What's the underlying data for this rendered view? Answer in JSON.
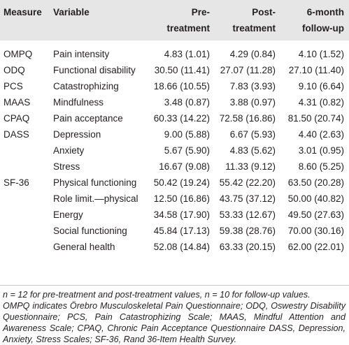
{
  "headers": {
    "measure": "Measure",
    "variable": "Variable",
    "pre_line1": "Pre-",
    "pre_line2": "treatment",
    "post_line1": "Post-",
    "post_line2": "treatment",
    "follow_line1": "6-month",
    "follow_line2": "follow-up"
  },
  "rows": [
    {
      "measure": "OMPQ",
      "variable": "Pain intensity",
      "pre": "4.83 (1.01)",
      "post": "4.29 (0.84)",
      "follow": "4.10 (1.52)"
    },
    {
      "measure": "ODQ",
      "variable": "Functional disability",
      "pre": "30.50 (11.41)",
      "post": "27.07 (11.28)",
      "follow": "27.10 (11.40)"
    },
    {
      "measure": "PCS",
      "variable": "Catastrophizing",
      "pre": "18.66 (10.55)",
      "post": "7.83 (3.93)",
      "follow": "9.10 (6.64)"
    },
    {
      "measure": "MAAS",
      "variable": "Mindfulness",
      "pre": "3.48 (0.87)",
      "post": "3.88 (0.97)",
      "follow": "4.31 (0.82)"
    },
    {
      "measure": "CPAQ",
      "variable": "Pain acceptance",
      "pre": "60.33 (14.22)",
      "post": "72.58 (16.86)",
      "follow": "81.50 (20.74)"
    },
    {
      "measure": "DASS",
      "variable": "Depression",
      "pre": "9.00 (5.88)",
      "post": "6.67 (5.93)",
      "follow": "4.40 (2.63)"
    },
    {
      "measure": "",
      "variable": "Anxiety",
      "pre": "5.67 (5.90)",
      "post": "4.83 (5.62)",
      "follow": "3.01 (0.95)"
    },
    {
      "measure": "",
      "variable": "Stress",
      "pre": "16.67 (9.08)",
      "post": "11.33 (9.12)",
      "follow": "8.60 (5.25)"
    },
    {
      "measure": "SF-36",
      "variable": "Physical functioning",
      "pre": "50.42 (19.24)",
      "post": "55.42 (22.20)",
      "follow": "63.50 (20.28)"
    },
    {
      "measure": "",
      "variable": "Role limit.—physical",
      "pre": "12.50 (16.86)",
      "post": "43.75 (37.12)",
      "follow": "50.00 (40.82)"
    },
    {
      "measure": "",
      "variable": "Energy",
      "pre": "34.58 (17.90)",
      "post": "53.33 (12.67)",
      "follow": "49.50 (27.63)"
    },
    {
      "measure": "",
      "variable": "Social functioning",
      "pre": "45.84 (17.13)",
      "post": "59.38 (28.76)",
      "follow": "70.00 (30.16)"
    },
    {
      "measure": "",
      "variable": "General health",
      "pre": "52.08 (14.84)",
      "post": "63.33 (20.15)",
      "follow": "62.00 (22.01)"
    }
  ],
  "footnote": {
    "line1": "n = 12 for pre-treatment and post-treatment values, n = 10 for follow-up values.",
    "line2": "OMPQ indicates Örebro Musculoskeletal Pain Questionnaire; ODQ, Oswestry Disability Questionnaire; PCS, Pain Catastrophizing Scale; MAAS, Mindful Attention and Awareness Scale; CPAQ, Chronic Pain Acceptance Questionnaire DASS, Depression, Anxiety, Stress Scales; SF-36, Rand 36-Item Health Survey."
  }
}
